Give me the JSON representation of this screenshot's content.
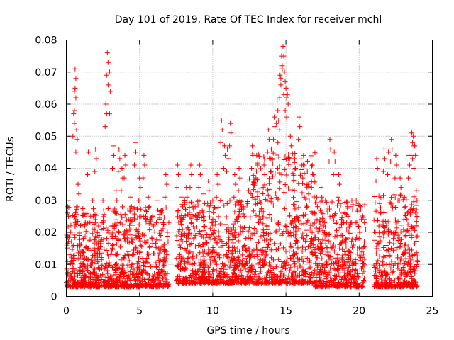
{
  "chart_data": {
    "type": "scatter",
    "title": "Day 101 of 2019, Rate Of TEC Index for receiver mchl",
    "xlabel": "GPS time / hours",
    "ylabel": "ROTI / TECUs",
    "xlim": [
      0,
      25
    ],
    "ylim": [
      0,
      0.08
    ],
    "x_ticks": [
      0,
      5,
      10,
      15,
      20,
      25
    ],
    "x_tick_labels": [
      "0",
      "5",
      "10",
      "15",
      "20",
      "25"
    ],
    "y_ticks": [
      0,
      0.01,
      0.02,
      0.03,
      0.04,
      0.05,
      0.06,
      0.07,
      0.08
    ],
    "y_tick_labels": [
      "0",
      "0.01",
      "0.02",
      "0.03",
      "0.04",
      "0.05",
      "0.06",
      "0.07",
      "0.08"
    ],
    "grid": true,
    "marker": "+",
    "color": "#ff0000",
    "series": [
      {
        "name": "ROTI",
        "x": [
          0.1,
          0.3,
          0.5,
          0.6,
          0.6,
          0.7,
          0.8,
          0.9,
          1.2,
          1.5,
          1.8,
          2.0,
          2.2,
          2.5,
          2.7,
          2.8,
          2.9,
          3.0,
          3.2,
          3.4,
          3.6,
          3.8,
          4.0,
          4.2,
          4.4,
          4.7,
          5.0,
          5.3,
          5.6,
          5.9,
          6.2,
          6.5,
          6.8,
          6.9,
          7.6,
          7.9,
          8.2,
          8.5,
          8.8,
          9.1,
          9.4,
          9.7,
          10.0,
          10.3,
          10.6,
          10.8,
          11.0,
          11.2,
          11.5,
          11.8,
          12.1,
          12.4,
          12.7,
          13.0,
          13.2,
          13.5,
          13.8,
          14.0,
          14.2,
          14.4,
          14.5,
          14.6,
          14.7,
          14.8,
          14.9,
          15.0,
          15.1,
          15.3,
          15.6,
          15.9,
          16.2,
          16.5,
          16.8,
          17.1,
          17.4,
          17.7,
          18.0,
          18.3,
          18.6,
          18.9,
          19.2,
          19.5,
          19.8,
          20.1,
          20.4,
          21.2,
          21.4,
          21.7,
          22.0,
          22.2,
          22.5,
          22.8,
          23.1,
          23.4,
          23.6,
          23.7,
          23.8,
          23.9
        ],
        "y": [
          0.028,
          0.02,
          0.057,
          0.071,
          0.065,
          0.052,
          0.035,
          0.019,
          0.025,
          0.045,
          0.03,
          0.046,
          0.022,
          0.03,
          0.06,
          0.076,
          0.073,
          0.064,
          0.047,
          0.033,
          0.046,
          0.04,
          0.044,
          0.027,
          0.031,
          0.048,
          0.037,
          0.044,
          0.031,
          0.025,
          0.03,
          0.026,
          0.038,
          0.02,
          0.041,
          0.031,
          0.034,
          0.041,
          0.028,
          0.041,
          0.032,
          0.036,
          0.03,
          0.038,
          0.055,
          0.047,
          0.046,
          0.054,
          0.038,
          0.04,
          0.028,
          0.036,
          0.047,
          0.044,
          0.03,
          0.041,
          0.052,
          0.046,
          0.056,
          0.061,
          0.055,
          0.069,
          0.075,
          0.078,
          0.07,
          0.065,
          0.063,
          0.05,
          0.043,
          0.056,
          0.044,
          0.035,
          0.041,
          0.031,
          0.034,
          0.03,
          0.049,
          0.045,
          0.038,
          0.026,
          0.028,
          0.03,
          0.03,
          0.027,
          0.024,
          0.043,
          0.029,
          0.046,
          0.045,
          0.049,
          0.044,
          0.037,
          0.031,
          0.044,
          0.051,
          0.05,
          0.047,
          0.033
        ],
        "dense_band": [
          {
            "x_range": [
              0.0,
              7.0
            ],
            "y_range": [
              0.003,
              0.028
            ]
          },
          {
            "x_range": [
              7.5,
              12.5
            ],
            "y_range": [
              0.004,
              0.03
            ]
          },
          {
            "x_range": [
              12.5,
              17.0
            ],
            "y_range": [
              0.004,
              0.045
            ]
          },
          {
            "x_range": [
              17.0,
              20.4
            ],
            "y_range": [
              0.003,
              0.03
            ]
          },
          {
            "x_range": [
              21.0,
              24.0
            ],
            "y_range": [
              0.003,
              0.032
            ]
          }
        ]
      }
    ]
  }
}
